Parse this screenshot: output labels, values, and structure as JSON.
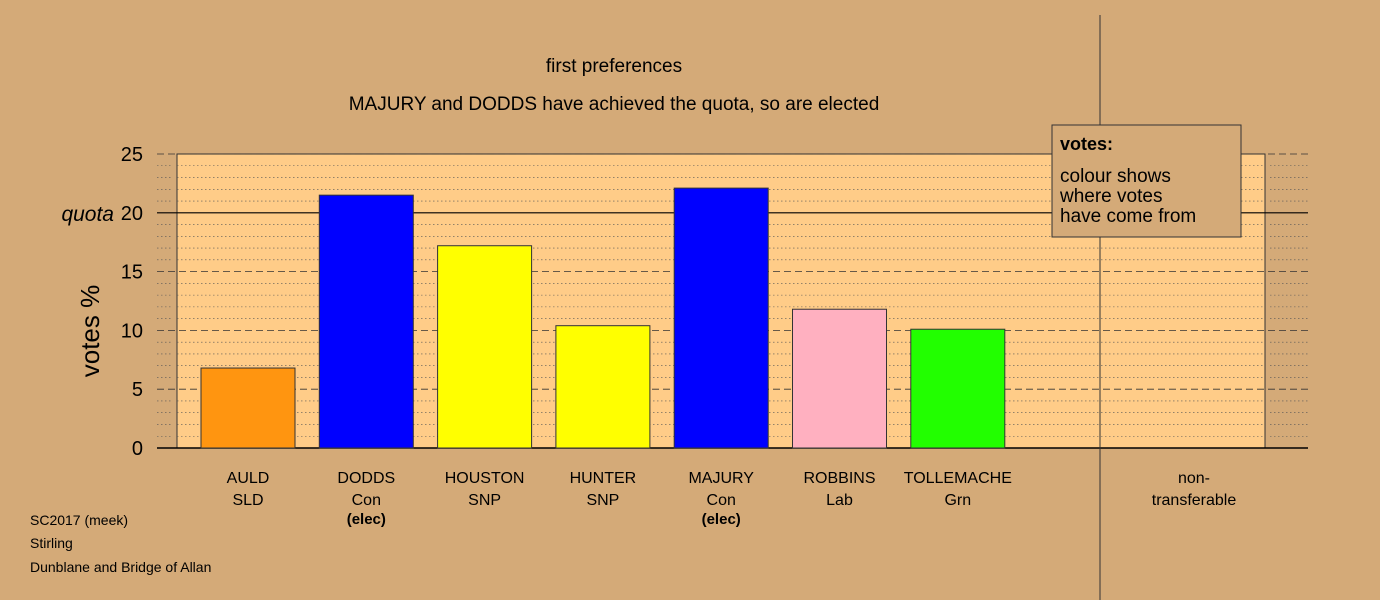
{
  "titles": {
    "line1": "first preferences",
    "line2": "MAJURY and DODDS have achieved the quota, so are elected"
  },
  "footer": {
    "line1": "SC2017 (meek)",
    "line2": "Stirling",
    "line3": "Dunblane and Bridge of Allan"
  },
  "legend": {
    "title": "votes:",
    "lines": [
      "colour shows",
      "where votes",
      "have come from"
    ]
  },
  "colors": {
    "background": "#d4aa78",
    "plot_area": "#ffcc88",
    "frame": "#333333"
  },
  "chart_data": {
    "type": "bar",
    "ylabel": "votes %",
    "ylim": [
      0,
      25
    ],
    "yticks": [
      0,
      5,
      10,
      15,
      20,
      25
    ],
    "quota": 20,
    "quota_label": "quota",
    "grid": true,
    "legend_position": "top-right",
    "categories": [
      {
        "name": "AULD",
        "party": "SLD",
        "value": 6.8,
        "color": "#ff9510",
        "note": ""
      },
      {
        "name": "DODDS",
        "party": "Con",
        "value": 21.5,
        "color": "#0000ff",
        "note": "(elec)"
      },
      {
        "name": "HOUSTON",
        "party": "SNP",
        "value": 17.2,
        "color": "#ffff00",
        "note": ""
      },
      {
        "name": "HUNTER",
        "party": "SNP",
        "value": 10.4,
        "color": "#ffff00",
        "note": ""
      },
      {
        "name": "MAJURY",
        "party": "Con",
        "value": 22.1,
        "color": "#0000ff",
        "note": "(elec)"
      },
      {
        "name": "ROBBINS",
        "party": "Lab",
        "value": 11.8,
        "color": "#ffb0c0",
        "note": ""
      },
      {
        "name": "TOLLEMACHE",
        "party": "Grn",
        "value": 10.1,
        "color": "#22ff00",
        "note": ""
      }
    ],
    "nontransferable": {
      "line1": "non-",
      "line2": "transferable",
      "value": 0
    }
  }
}
